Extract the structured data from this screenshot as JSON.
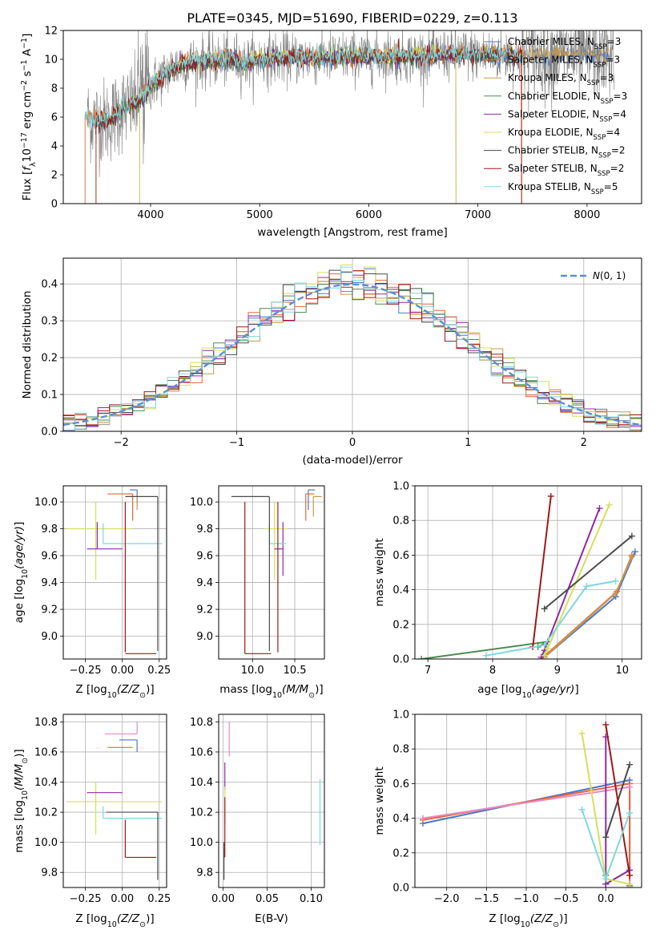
{
  "figure": {
    "title": "PLATE=0345, MJD=51690, FIBERID=0229, z=0.113"
  },
  "colors": {
    "data_spectrum": "#808080",
    "models": [
      "#4c78c8",
      "#e8663a",
      "#c89a46",
      "#4f8a4f",
      "#8e2aa8",
      "#d4e05a",
      "#4a4a4a",
      "#a01818",
      "#7fd7dc"
    ],
    "gauss": "#5b8fd6"
  },
  "chart_data": [
    {
      "id": "spectrum",
      "type": "line",
      "xlabel": "wavelength [Angstrom, rest frame]",
      "ylabel": "Flux [f_λ10^−17 erg cm^−2 s^−1 A^−1]",
      "xlim": [
        3200,
        8500
      ],
      "ylim": [
        0,
        12
      ],
      "xticks": [
        4000,
        5000,
        6000,
        7000,
        8000
      ],
      "yticks": [
        0,
        2,
        4,
        6,
        8,
        10,
        12
      ],
      "legend_position": "right",
      "legend": [
        {
          "label": "Chabrier MILES, N",
          "sub": "SSP",
          "suffix": "=3"
        },
        {
          "label": "Salpeter MILES, N",
          "sub": "SSP",
          "suffix": "=3"
        },
        {
          "label": "Kroupa MILES, N",
          "sub": "SSP",
          "suffix": "=3"
        },
        {
          "label": "Chabrier ELODIE, N",
          "sub": "SSP",
          "suffix": "=3"
        },
        {
          "label": "Salpeter ELODIE, N",
          "sub": "SSP",
          "suffix": "=4"
        },
        {
          "label": "Kroupa ELODIE, N",
          "sub": "SSP",
          "suffix": "=4"
        },
        {
          "label": "Chabrier STELIB, N",
          "sub": "SSP",
          "suffix": "=2"
        },
        {
          "label": "Salpeter STELIB, N",
          "sub": "SSP",
          "suffix": "=2"
        },
        {
          "label": "Kroupa STELIB, N",
          "sub": "SSP",
          "suffix": "=5"
        }
      ],
      "spectrum_anchors": [
        [
          3420,
          5.9
        ],
        [
          3600,
          5.7
        ],
        [
          3750,
          6.6
        ],
        [
          3850,
          6.9
        ],
        [
          3930,
          7.4
        ],
        [
          4000,
          8.2
        ],
        [
          4100,
          8.8
        ],
        [
          4200,
          9.4
        ],
        [
          4300,
          9.7
        ],
        [
          4400,
          9.8
        ],
        [
          4600,
          9.9
        ],
        [
          4800,
          10.0
        ],
        [
          4850,
          9.7
        ],
        [
          5000,
          10.0
        ],
        [
          5200,
          10.1
        ],
        [
          5400,
          10.1
        ],
        [
          5600,
          10.1
        ],
        [
          5800,
          10.2
        ],
        [
          6000,
          10.2
        ],
        [
          6300,
          10.2
        ],
        [
          6560,
          10.3
        ],
        [
          6800,
          10.4
        ],
        [
          7000,
          10.3
        ],
        [
          7200,
          10.3
        ],
        [
          7400,
          10.3
        ]
      ],
      "model_ranges": [
        [
          3400,
          8200
        ],
        [
          3400,
          7400
        ],
        [
          3400,
          8200
        ],
        [
          3600,
          7200
        ],
        [
          3900,
          6800
        ],
        [
          3900,
          6800
        ],
        [
          3500,
          7400
        ],
        [
          3500,
          7400
        ],
        [
          3400,
          7400
        ]
      ]
    },
    {
      "id": "residuals",
      "type": "histogram",
      "xlabel": "(data-model)/error",
      "ylabel": "Normed distribution",
      "xlim": [
        -2.5,
        2.5
      ],
      "ylim": [
        0,
        0.47
      ],
      "xticks": [
        -2,
        -1,
        0,
        1,
        2
      ],
      "yticks": [
        0.0,
        0.1,
        0.2,
        0.3,
        0.4
      ],
      "legend_label": "N(0,1)",
      "bin_width": 0.1,
      "gaussian": {
        "mean": 0,
        "sigma": 1
      }
    },
    {
      "id": "age_vs_Z",
      "type": "errorbar",
      "xlabel": "Z [log10(Z/Z⊙)]",
      "ylabel": "age  [log10(age/yr)]",
      "xlim": [
        -0.4,
        0.3
      ],
      "ylim": [
        8.83,
        10.12
      ],
      "xticks": [
        -0.25,
        0.0,
        0.25
      ],
      "xticklabels": [
        "−0.25",
        "0.00",
        "0.25"
      ],
      "yticks": [
        9.0,
        9.2,
        9.4,
        9.6,
        9.8,
        10.0
      ],
      "series": [
        {
          "ci": 0,
          "x": 0.1,
          "y": 10.09,
          "xerr": [
            0.05,
            0.0
          ],
          "yerr": [
            0.1,
            0.0
          ]
        },
        {
          "ci": 1,
          "x": 0.07,
          "y": 10.06,
          "xerr": [
            0.17,
            0.0
          ],
          "yerr": [
            0.2,
            0.0
          ]
        },
        {
          "ci": 2,
          "x": 0.1,
          "y": 10.04,
          "xerr": [
            0.05,
            0.0
          ],
          "yerr": [
            0.1,
            0.0
          ]
        },
        {
          "ci": 5,
          "x": -0.18,
          "y": 9.8,
          "xerr": [
            0.2,
            0.25
          ],
          "yerr": [
            0.38,
            0.2
          ]
        },
        {
          "ci": 4,
          "x": -0.17,
          "y": 9.65,
          "xerr": [
            0.07,
            0.17
          ],
          "yerr": [
            0.0,
            0.2
          ]
        },
        {
          "ci": 8,
          "x": -0.13,
          "y": 9.69,
          "xerr": [
            0.0,
            0.4
          ],
          "yerr": [
            0.0,
            0.15
          ]
        },
        {
          "ci": 6,
          "x": 0.24,
          "y": 10.04,
          "xerr": [
            0.22,
            0.0
          ],
          "yerr": [
            1.15,
            0.0
          ]
        },
        {
          "ci": 7,
          "x": 0.02,
          "y": 10.0,
          "xerr": [
            0.0,
            0.0
          ],
          "yerr": [
            1.12,
            0.0
          ]
        },
        {
          "ci": 7,
          "x": 0.02,
          "y": 8.87,
          "xerr": [
            0.0,
            0.21
          ],
          "yerr": [
            0.0,
            0.0
          ]
        }
      ]
    },
    {
      "id": "age_vs_mass",
      "type": "errorbar",
      "xlabel": "mass [log10(M/M⊙)]",
      "ylabel": "",
      "xlim": [
        9.6,
        10.85
      ],
      "ylim": [
        8.83,
        10.12
      ],
      "xticks": [
        10.0,
        10.5
      ],
      "xticklabels": [
        "10.0",
        "10.5"
      ],
      "yticks": [
        9.0,
        9.2,
        9.4,
        9.6,
        9.8,
        10.0
      ],
      "series": [
        {
          "ci": 0,
          "x": 10.66,
          "y": 10.09,
          "xerr": [
            0.0,
            0.08
          ],
          "yerr": [
            0.15,
            0.0
          ]
        },
        {
          "ci": 1,
          "x": 10.63,
          "y": 10.06,
          "xerr": [
            0.0,
            0.1
          ],
          "yerr": [
            0.2,
            0.0
          ]
        },
        {
          "ci": 2,
          "x": 10.72,
          "y": 10.04,
          "xerr": [
            0.0,
            0.1
          ],
          "yerr": [
            0.15,
            0.0
          ]
        },
        {
          "ci": 5,
          "x": 10.26,
          "y": 9.8,
          "xerr": [
            0.12,
            0.15
          ],
          "yerr": [
            0.38,
            0.2
          ]
        },
        {
          "ci": 4,
          "x": 10.36,
          "y": 9.65,
          "xerr": [
            0.1,
            0.0
          ],
          "yerr": [
            0.2,
            0.2
          ]
        },
        {
          "ci": 8,
          "x": 10.2,
          "y": 9.69,
          "xerr": [
            0.0,
            0.2
          ],
          "yerr": [
            0.0,
            0.15
          ]
        },
        {
          "ci": 6,
          "x": 10.2,
          "y": 10.04,
          "xerr": [
            0.45,
            0.0
          ],
          "yerr": [
            1.15,
            0.0
          ]
        },
        {
          "ci": 7,
          "x": 10.3,
          "y": 10.0,
          "xerr": [
            0.0,
            0.0
          ],
          "yerr": [
            1.12,
            0.0
          ]
        },
        {
          "ci": 7,
          "x": 9.91,
          "y": 8.87,
          "xerr": [
            0.0,
            0.31
          ],
          "yerr": [
            0.0,
            0.0
          ]
        },
        {
          "ci": 7,
          "x": 9.91,
          "y": 8.87,
          "xerr": [
            0.0,
            0.0
          ],
          "yerr": [
            0.0,
            1.13
          ]
        }
      ]
    },
    {
      "id": "massweight_vs_age",
      "type": "line",
      "xlabel": "age  [log10(age/yr)]",
      "ylabel": "mass weight",
      "xlim": [
        6.8,
        10.3
      ],
      "ylim": [
        0,
        1.0
      ],
      "xticks": [
        7,
        8,
        9,
        10
      ],
      "yticks": [
        0.0,
        0.2,
        0.4,
        0.6,
        0.8,
        1.0
      ],
      "series": [
        {
          "ci": 0,
          "x": [
            8.8,
            9.9,
            10.2
          ],
          "y": [
            0.01,
            0.36,
            0.62
          ]
        },
        {
          "ci": 1,
          "x": [
            8.75,
            9.92,
            10.15
          ],
          "y": [
            0.0,
            0.39,
            0.6
          ]
        },
        {
          "ci": 2,
          "x": [
            8.8,
            9.9,
            10.15
          ],
          "y": [
            0.01,
            0.38,
            0.59
          ]
        },
        {
          "ci": 3,
          "x": [
            6.9,
            8.85,
            8.7
          ],
          "y": [
            0.0,
            0.1,
            0.07
          ]
        },
        {
          "ci": 4,
          "x": [
            8.75,
            8.8,
            9.65
          ],
          "y": [
            0.01,
            0.05,
            0.87
          ]
        },
        {
          "ci": 5,
          "x": [
            8.8,
            8.85,
            9.8
          ],
          "y": [
            0.02,
            0.06,
            0.89
          ]
        },
        {
          "ci": 6,
          "x": [
            8.8,
            10.15
          ],
          "y": [
            0.29,
            0.71
          ]
        },
        {
          "ci": 7,
          "x": [
            8.62,
            8.9
          ],
          "y": [
            0.07,
            0.94
          ]
        },
        {
          "ci": 8,
          "x": [
            7.9,
            8.8,
            9.45,
            9.9
          ],
          "y": [
            0.02,
            0.08,
            0.42,
            0.45
          ]
        }
      ]
    },
    {
      "id": "mass_vs_Z",
      "type": "errorbar",
      "xlabel": "Z [log10(Z/Z⊙)]",
      "ylabel": "mass [log10(M/M⊙)]",
      "xlim": [
        -0.4,
        0.3
      ],
      "ylim": [
        9.7,
        10.85
      ],
      "xticks": [
        -0.25,
        0.0,
        0.25
      ],
      "xticklabels": [
        "−0.25",
        "0.00",
        "0.25"
      ],
      "yticks": [
        9.8,
        10.0,
        10.2,
        10.4,
        10.6,
        10.8
      ],
      "series": [
        {
          "ci": 9,
          "x": 0.1,
          "y": 10.72,
          "xerr": [
            0.22,
            0.0
          ],
          "yerr": [
            0.0,
            0.0
          ]
        },
        {
          "ci": 9,
          "x": 0.1,
          "y": 10.72,
          "xerr": [
            0.0,
            0.0
          ],
          "yerr": [
            0.0,
            0.08
          ]
        },
        {
          "ci": 0,
          "x": 0.1,
          "y": 10.68,
          "xerr": [
            0.12,
            0.0
          ],
          "yerr": [
            0.08,
            0.0
          ]
        },
        {
          "ci": 1,
          "x": 0.07,
          "y": 10.63,
          "xerr": [
            0.17,
            0.0
          ],
          "yerr": [
            0.0,
            0.0
          ]
        },
        {
          "ci": 5,
          "x": -0.18,
          "y": 10.27,
          "xerr": [
            0.2,
            0.45
          ],
          "yerr": [
            0.22,
            0.13
          ]
        },
        {
          "ci": 4,
          "x": -0.17,
          "y": 10.33,
          "xerr": [
            0.07,
            0.17
          ],
          "yerr": [
            0.0,
            0.0
          ]
        },
        {
          "ci": 8,
          "x": -0.13,
          "y": 10.16,
          "xerr": [
            0.0,
            0.4
          ],
          "yerr": [
            0.0,
            0.08
          ]
        },
        {
          "ci": 6,
          "x": 0.24,
          "y": 10.2,
          "xerr": [
            0.35,
            0.0
          ],
          "yerr": [
            0.45,
            0.0
          ]
        },
        {
          "ci": 7,
          "x": 0.02,
          "y": 9.9,
          "xerr": [
            0.0,
            0.21
          ],
          "yerr": [
            0.0,
            0.0
          ]
        },
        {
          "ci": 7,
          "x": 0.02,
          "y": 9.9,
          "xerr": [
            0.0,
            0.0
          ],
          "yerr": [
            0.0,
            0.25
          ]
        }
      ]
    },
    {
      "id": "mass_vs_ebv",
      "type": "errorbar",
      "xlabel": "E(B-V)",
      "ylabel": "",
      "xlim": [
        -0.005,
        0.115
      ],
      "ylim": [
        9.7,
        10.85
      ],
      "xticks": [
        0.0,
        0.05,
        0.1
      ],
      "xticklabels": [
        "0.00",
        "0.05",
        "0.10"
      ],
      "yticks": [
        9.8,
        10.0,
        10.2,
        10.4,
        10.6,
        10.8
      ],
      "series": [
        {
          "ci": 9,
          "x": 0.007,
          "y": 10.72,
          "yerr": [
            0.15,
            0.08
          ]
        },
        {
          "ci": 4,
          "x": 0.002,
          "y": 10.45,
          "yerr": [
            0.1,
            0.08
          ]
        },
        {
          "ci": 5,
          "x": 0.002,
          "y": 10.27,
          "yerr": [
            0.15,
            0.1
          ]
        },
        {
          "ci": 6,
          "x": 0.001,
          "y": 10.0,
          "yerr": [
            0.25,
            0.0
          ]
        },
        {
          "ci": 7,
          "x": 0.002,
          "y": 10.1,
          "yerr": [
            0.2,
            0.2
          ]
        },
        {
          "ci": 8,
          "x": 0.11,
          "y": 10.2,
          "yerr": [
            0.22,
            0.22
          ]
        }
      ]
    },
    {
      "id": "massweight_vs_Z",
      "type": "line",
      "xlabel": "Z [log10(Z/Z⊙)]",
      "ylabel": "mass weight",
      "xlim": [
        -2.4,
        0.45
      ],
      "ylim": [
        0,
        1.0
      ],
      "xticks": [
        -2.0,
        -1.5,
        -1.0,
        -0.5,
        0.0
      ],
      "xticklabels": [
        "−2.0",
        "−1.5",
        "−1.0",
        "−0.5",
        "0.0"
      ],
      "yticks": [
        0.0,
        0.2,
        0.4,
        0.6,
        0.8,
        1.0
      ],
      "series": [
        {
          "ci": 0,
          "x": [
            -2.3,
            0.3,
            0.3
          ],
          "y": [
            0.37,
            0.62,
            0.01
          ]
        },
        {
          "ci": 1,
          "x": [
            -2.3,
            0.3,
            0.3
          ],
          "y": [
            0.39,
            0.6,
            0.0
          ]
        },
        {
          "ci": 9,
          "x": [
            -2.3,
            0.3
          ],
          "y": [
            0.4,
            0.58
          ]
        },
        {
          "ci": 3,
          "x": [
            0.3,
            0.0,
            0.0
          ],
          "y": [
            0.1,
            0.02,
            0.07
          ]
        },
        {
          "ci": 4,
          "x": [
            0.0,
            0.0,
            0.3
          ],
          "y": [
            0.87,
            0.02,
            0.1
          ]
        },
        {
          "ci": 5,
          "x": [
            -0.3,
            0.0,
            0.3
          ],
          "y": [
            0.89,
            0.05,
            0.02
          ]
        },
        {
          "ci": 6,
          "x": [
            0.0,
            0.3
          ],
          "y": [
            0.29,
            0.71
          ]
        },
        {
          "ci": 7,
          "x": [
            0.0,
            0.3
          ],
          "y": [
            0.94,
            0.07
          ]
        },
        {
          "ci": 8,
          "x": [
            -0.3,
            0.0,
            0.3
          ],
          "y": [
            0.45,
            0.05,
            0.43
          ]
        }
      ]
    }
  ]
}
